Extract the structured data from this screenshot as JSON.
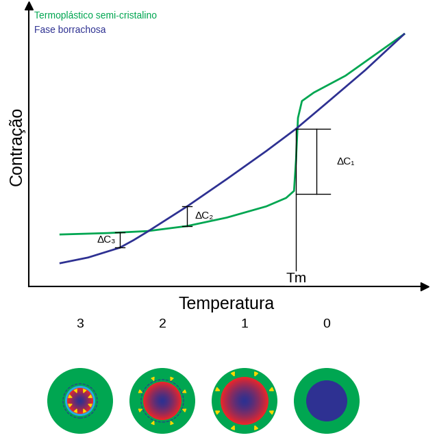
{
  "chart_data": {
    "type": "line",
    "x_label": "Temperatura",
    "y_label": "Contração",
    "xlim": [
      0,
      10
    ],
    "ylim": [
      0,
      10
    ],
    "xticks": [],
    "yticks": [],
    "tick_labels": false,
    "legend": "upper left",
    "series": [
      {
        "name": "Termoplástico semi-cristalino",
        "color": "#00a651",
        "x": [
          0.8,
          2.0,
          3.0,
          4.0,
          5.0,
          6.0,
          6.5,
          6.7,
          6.75,
          6.8,
          6.9,
          7.2,
          8.0,
          9.0,
          9.48
        ],
        "values": [
          1.85,
          1.9,
          1.97,
          2.15,
          2.45,
          2.85,
          3.15,
          3.4,
          4.5,
          6.0,
          6.6,
          6.9,
          7.5,
          8.5,
          8.98
        ]
      },
      {
        "name": "Fase borrachosa",
        "color": "#2e3192",
        "x": [
          0.8,
          1.5,
          2.3,
          2.65,
          3.0,
          4.0,
          5.0,
          6.0,
          6.75,
          7.5,
          8.5,
          9.48
        ],
        "values": [
          0.83,
          1.03,
          1.38,
          1.65,
          1.95,
          2.85,
          3.82,
          4.82,
          5.61,
          6.5,
          7.7,
          8.98
        ]
      }
    ],
    "annotations": [
      {
        "text": "ΔC₁",
        "x": 7.27,
        "y_low": 3.29,
        "y_high": 5.61
      },
      {
        "text": "ΔC₂",
        "x": 4.0,
        "y_low": 2.15,
        "y_high": 2.85
      },
      {
        "text": "ΔC₃",
        "x": 2.3,
        "y_low": 1.38,
        "y_high": 1.93
      }
    ],
    "marker_line": {
      "text": "Tm",
      "x": 6.75,
      "y": 5.61
    }
  },
  "diagram": {
    "stages": [
      "3",
      "2",
      "1",
      "0"
    ]
  }
}
